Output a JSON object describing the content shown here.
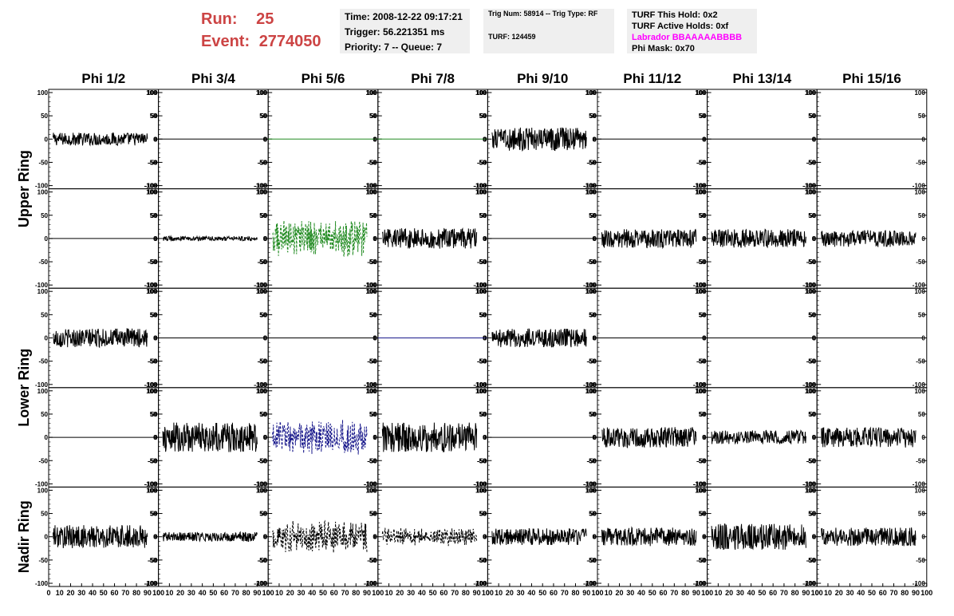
{
  "run_label": "Run:",
  "run_value": "25",
  "event_label": "Event:",
  "event_value": "2774050",
  "info": {
    "time": "Time: 2008-12-22 09:17:21",
    "trigger": "Trigger: 56.221351 ms",
    "priority": "Priority: 7 -- Queue: 7",
    "trig_num": "Trig Num: 58914 -- Trig Type: RF",
    "turf": "TURF: 124459",
    "turf_hold": "TURF This Hold: 0x2",
    "turf_active": "TURF Active Holds: 0xf",
    "labrador": "Labrador BBAAAAABBBB",
    "phi_mask": "Phi Mask: 0x70"
  },
  "ring_labels": [
    "Upper Ring",
    "Lower Ring",
    "Nadir Ring"
  ],
  "chart_data": {
    "type": "line",
    "columns": [
      "Phi 1/2",
      "Phi 3/4",
      "Phi 5/6",
      "Phi 7/8",
      "Phi 9/10",
      "Phi 11/12",
      "Phi 13/14",
      "Phi 15/16"
    ],
    "ylim": [
      -100,
      100
    ],
    "yticks": [
      "100",
      "50",
      "0",
      "-50",
      "-100"
    ],
    "xlim": [
      0,
      100
    ],
    "xticks": [
      "0",
      "10",
      "20",
      "30",
      "40",
      "50",
      "60",
      "70",
      "80",
      "90",
      "100"
    ],
    "colors": {
      "default": "#000000",
      "green": "#228b22",
      "blue": "#1a1a8c"
    },
    "rows": [
      [
        {
          "amp": 14,
          "style": "solid",
          "color": "default"
        },
        {
          "amp": 0,
          "style": "solid",
          "color": "default"
        },
        {
          "amp": 0,
          "style": "solid",
          "color": "green"
        },
        {
          "amp": 0,
          "style": "solid",
          "color": "green"
        },
        {
          "amp": 25,
          "style": "solid",
          "color": "default"
        },
        {
          "amp": 0,
          "style": "solid",
          "color": "default"
        },
        {
          "amp": 0,
          "style": "solid",
          "color": "default"
        },
        {
          "amp": 0,
          "style": "solid",
          "color": "default"
        }
      ],
      [
        {
          "amp": 0,
          "style": "solid",
          "color": "default"
        },
        {
          "amp": 5,
          "style": "solid",
          "color": "default"
        },
        {
          "amp": 40,
          "style": "dashed",
          "color": "green"
        },
        {
          "amp": 22,
          "style": "solid",
          "color": "default"
        },
        {
          "amp": 0,
          "style": "solid",
          "color": "default"
        },
        {
          "amp": 20,
          "style": "solid",
          "color": "default"
        },
        {
          "amp": 20,
          "style": "solid",
          "color": "default"
        },
        {
          "amp": 18,
          "style": "solid",
          "color": "default"
        }
      ],
      [
        {
          "amp": 20,
          "style": "solid",
          "color": "default"
        },
        {
          "amp": 0,
          "style": "solid",
          "color": "default"
        },
        {
          "amp": 0,
          "style": "solid",
          "color": "default"
        },
        {
          "amp": 0,
          "style": "solid",
          "color": "blue"
        },
        {
          "amp": 20,
          "style": "solid",
          "color": "default"
        },
        {
          "amp": 0,
          "style": "solid",
          "color": "default"
        },
        {
          "amp": 0,
          "style": "solid",
          "color": "default"
        },
        {
          "amp": 0,
          "style": "solid",
          "color": "default"
        }
      ],
      [
        {
          "amp": 0,
          "style": "solid",
          "color": "default"
        },
        {
          "amp": 32,
          "style": "solid",
          "color": "default"
        },
        {
          "amp": 40,
          "style": "dashed",
          "color": "blue"
        },
        {
          "amp": 32,
          "style": "solid",
          "color": "default"
        },
        {
          "amp": 0,
          "style": "solid",
          "color": "default"
        },
        {
          "amp": 22,
          "style": "solid",
          "color": "default"
        },
        {
          "amp": 15,
          "style": "solid",
          "color": "default"
        },
        {
          "amp": 22,
          "style": "solid",
          "color": "default"
        }
      ],
      [
        {
          "amp": 25,
          "style": "solid",
          "color": "default"
        },
        {
          "amp": 10,
          "style": "solid",
          "color": "default"
        },
        {
          "amp": 35,
          "style": "dashed",
          "color": "default"
        },
        {
          "amp": 20,
          "style": "dashed",
          "color": "default"
        },
        {
          "amp": 18,
          "style": "solid",
          "color": "default"
        },
        {
          "amp": 20,
          "style": "solid",
          "color": "default"
        },
        {
          "amp": 28,
          "style": "solid",
          "color": "default"
        },
        {
          "amp": 20,
          "style": "solid",
          "color": "default"
        }
      ]
    ]
  }
}
